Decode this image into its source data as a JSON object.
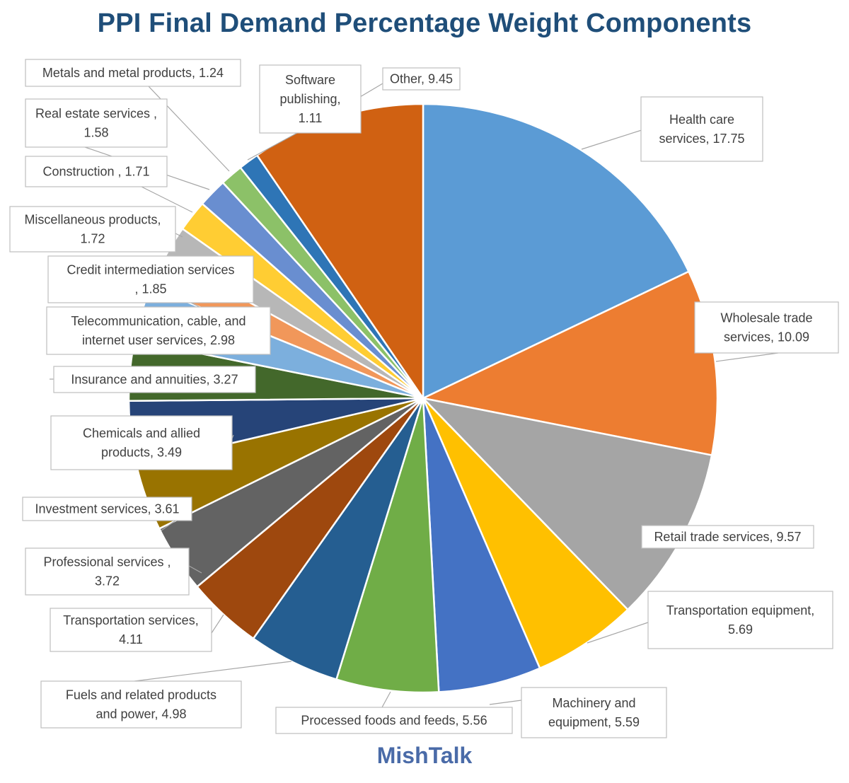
{
  "chart_data": {
    "type": "pie",
    "title": "PPI Final Demand Percentage Weight Components",
    "watermark": "MishTalk",
    "slices": [
      {
        "label": "Health care services",
        "value": 17.75,
        "color": "#5B9BD5",
        "display_lines": [
          "Health care",
          "services, 17.75"
        ]
      },
      {
        "label": "Wholesale trade services",
        "value": 10.09,
        "color": "#ED7D31",
        "display_lines": [
          "Wholesale trade",
          "services, 10.09"
        ]
      },
      {
        "label": "Retail trade services",
        "value": 9.57,
        "color": "#A5A5A5",
        "display_lines": [
          "Retail trade services, 9.57"
        ]
      },
      {
        "label": "Transportation equipment",
        "value": 5.69,
        "color": "#FFC000",
        "display_lines": [
          "Transportation equipment,",
          "5.69"
        ]
      },
      {
        "label": "Machinery and equipment",
        "value": 5.59,
        "color": "#4472C4",
        "display_lines": [
          "Machinery and",
          "equipment, 5.59"
        ]
      },
      {
        "label": "Processed foods and feeds",
        "value": 5.56,
        "color": "#70AD47",
        "display_lines": [
          "Processed foods and feeds, 5.56"
        ]
      },
      {
        "label": "Fuels and related products and power",
        "value": 4.98,
        "color": "#255E91",
        "display_lines": [
          "Fuels and related products",
          "and power, 4.98"
        ]
      },
      {
        "label": "Transportation services",
        "value": 4.11,
        "color": "#9E480E",
        "display_lines": [
          "Transportation services,",
          "4.11"
        ]
      },
      {
        "label": "Professional services",
        "value": 3.72,
        "color": "#636363",
        "display_lines": [
          "Professional services ,",
          "3.72"
        ]
      },
      {
        "label": "Investment services",
        "value": 3.61,
        "color": "#997300",
        "display_lines": [
          "Investment services, 3.61"
        ]
      },
      {
        "label": "Chemicals and allied products",
        "value": 3.49,
        "color": "#264478",
        "display_lines": [
          "Chemicals and allied",
          "products, 3.49"
        ]
      },
      {
        "label": "Insurance and annuities",
        "value": 3.27,
        "color": "#43682B",
        "display_lines": [
          "Insurance and annuities, 3.27"
        ]
      },
      {
        "label": "Telecommunication, cable, and internet user services",
        "value": 2.98,
        "color": "#7CAFDD",
        "display_lines": [
          "Telecommunication, cable, and",
          "internet user services, 2.98"
        ]
      },
      {
        "label": "Credit intermediation services",
        "value": 1.85,
        "color": "#F1975A",
        "display_lines": [
          "Credit intermediation services",
          ", 1.85"
        ]
      },
      {
        "label": "Miscellaneous products",
        "value": 1.72,
        "color": "#B7B7B7",
        "display_lines": [
          "Miscellaneous products,",
          "1.72"
        ]
      },
      {
        "label": "Construction",
        "value": 1.71,
        "color": "#FFCD33",
        "display_lines": [
          "Construction , 1.71"
        ]
      },
      {
        "label": "Real estate services",
        "value": 1.58,
        "color": "#698ED0",
        "display_lines": [
          "Real estate services ,",
          "1.58"
        ]
      },
      {
        "label": "Metals and metal products",
        "value": 1.24,
        "color": "#8CC168",
        "display_lines": [
          "Metals and metal products, 1.24"
        ]
      },
      {
        "label": "Software publishing",
        "value": 1.11,
        "color": "#2E75B6",
        "display_lines": [
          "Software",
          "publishing,",
          "1.11"
        ]
      },
      {
        "label": "Other",
        "value": 9.45,
        "color": "#D06112",
        "display_lines": [
          "Other, 9.45"
        ]
      }
    ],
    "start_angle": "12 o'clock",
    "direction": "clockwise",
    "legend": "none (data labels with leader lines)"
  }
}
